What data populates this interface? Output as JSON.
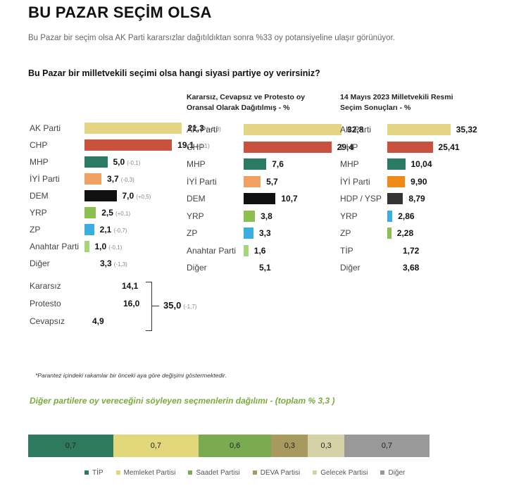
{
  "header": {
    "title": "BU PAZAR SEÇİM OLSA",
    "subtitle": "Bu Pazar bir seçim olsa AK Parti kararsızlar dağıtıldıktan sonra %33 oy potansiyeline ulaşır görünüyor.",
    "question": "Bu Pazar bir milletvekili seçimi olsa hangi siyasi partiye oy verirsiniz?"
  },
  "colors": {
    "AK Parti": "#e3d584",
    "CHP": "#c9523e",
    "MHP": "#2a7a64",
    "İYİ Parti": "#f0a060",
    "DEM": "#111111",
    "YRP": "#8cbf4f",
    "ZP": "#3aaee0",
    "Anahtar Parti": "#a8d57a",
    "İYİ Parti (2023)": "#f08a16",
    "HDP / YSP": "#333333",
    "ZP (2023)": "#8cbf4f",
    "YRP (2023)": "#3aaee0"
  },
  "chart_data": [
    {
      "type": "bar",
      "orientation": "horizontal",
      "categories": [
        "AK Parti",
        "CHP",
        "MHP",
        "İYİ Parti",
        "DEM",
        "YRP",
        "ZP",
        "Anahtar Parti",
        "Diğer",
        "Kararsız",
        "Protesto",
        "Cevapsız"
      ],
      "values": [
        21.3,
        19.1,
        5.0,
        3.7,
        7.0,
        2.5,
        2.1,
        1.0,
        3.3,
        14.1,
        16.0,
        4.9
      ],
      "labels": [
        "21,3",
        "19,1",
        "5,0",
        "3,7",
        "7,0",
        "2,5",
        "2,1",
        "1,0",
        "3,3",
        "14,1",
        "16,0",
        "4,9"
      ],
      "changes": [
        "(+1,3)",
        "(-1,1)",
        "(-0,1)",
        "(-0,3)",
        "(+0,5)",
        "(+0,1)",
        "(-0,7)",
        "(-0,1)",
        "(-1,3)",
        "",
        "",
        ""
      ],
      "group_total": {
        "label": "35,0",
        "change": "(-1,7)"
      }
    },
    {
      "type": "bar",
      "orientation": "horizontal",
      "title": "Kararsız, Cevapsız ve Protesto oy Oransal Olarak Dağıtılmış - %",
      "categories": [
        "AK Parti",
        "CHP",
        "MHP",
        "İYİ Parti",
        "DEM",
        "YRP",
        "ZP",
        "Anahtar Parti",
        "Diğer"
      ],
      "values": [
        32.8,
        29.4,
        7.6,
        5.7,
        10.7,
        3.8,
        3.3,
        1.6,
        5.1
      ],
      "labels": [
        "32,8",
        "29,4",
        "7,6",
        "5,7",
        "10,7",
        "3,8",
        "3,3",
        "1,6",
        "5,1"
      ]
    },
    {
      "type": "bar",
      "orientation": "horizontal",
      "title": "14 Mayıs 2023 Milletvekili Resmi Seçim Sonuçları - %",
      "categories": [
        "AK Parti",
        "CHP",
        "MHP",
        "İYİ Parti",
        "HDP / YSP",
        "YRP",
        "ZP",
        "TİP",
        "Diğer"
      ],
      "values": [
        35.32,
        25.41,
        10.04,
        9.9,
        8.79,
        2.86,
        2.28,
        1.72,
        3.68
      ],
      "labels": [
        "35,32",
        "25,41",
        "10,04",
        "9,90",
        "8,79",
        "2,86",
        "2,28",
        "1,72",
        "3,68"
      ]
    },
    {
      "type": "bar",
      "stacked": true,
      "orientation": "horizontal",
      "title": "Diğer partilere oy vereceğini söyleyen seçmenlerin dağılımı - (toplam % 3,3 )",
      "series": [
        {
          "name": "TİP",
          "value": 0.7,
          "label": "0,7",
          "color": "#2e7a5e"
        },
        {
          "name": "Memleket Partisi",
          "value": 0.7,
          "label": "0,7",
          "color": "#e3d77c"
        },
        {
          "name": "Saadet Partisi",
          "value": 0.6,
          "label": "0,6",
          "color": "#7aab50"
        },
        {
          "name": "DEVA Partisi",
          "value": 0.3,
          "label": "0,3",
          "color": "#a89a5e"
        },
        {
          "name": "Gelecek Partisi",
          "value": 0.3,
          "label": "0,3",
          "color": "#d6d2a8"
        },
        {
          "name": "Diğer",
          "value": 0.7,
          "label": "0,7",
          "color": "#999999"
        }
      ]
    }
  ],
  "footnote": "*Parantez içindeki rakamlar bir önceki aya göre değişimi göstermektedir."
}
